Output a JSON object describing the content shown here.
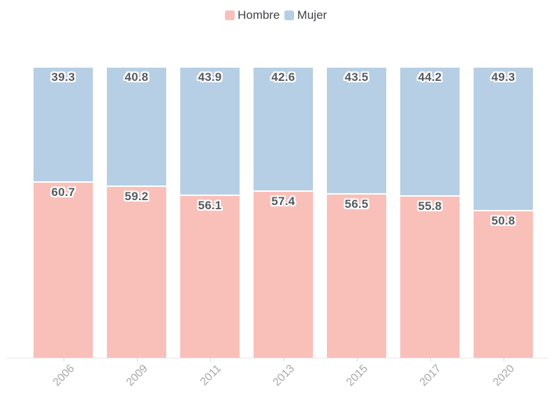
{
  "chart_data": {
    "type": "bar",
    "stacked": true,
    "percent_stacked": true,
    "title": "",
    "xlabel": "",
    "ylabel": "",
    "ylim": [
      0,
      100
    ],
    "grid": false,
    "legend_position": "top-center",
    "value_labels": "inside-top",
    "x_tick_rotation": 45,
    "categories": [
      "2006",
      "2009",
      "2011",
      "2013",
      "2015",
      "2017",
      "2020"
    ],
    "series": [
      {
        "name": "Hombre",
        "color": "#f9c0ba",
        "values": [
          60.7,
          59.2,
          56.1,
          57.4,
          56.5,
          55.8,
          50.8
        ]
      },
      {
        "name": "Mujer",
        "color": "#b7cfe4",
        "values": [
          39.3,
          40.8,
          43.9,
          42.6,
          43.5,
          44.2,
          49.3
        ]
      }
    ]
  },
  "colors": {
    "background": "#ffffff",
    "segment_border": "#ffffff",
    "value_label_text": "#565a60",
    "legend_text": "#404349",
    "axis_line": "#e7e7e7",
    "axis_tick": "#d9d9d9",
    "axis_label_text": "#a8a8a8"
  }
}
